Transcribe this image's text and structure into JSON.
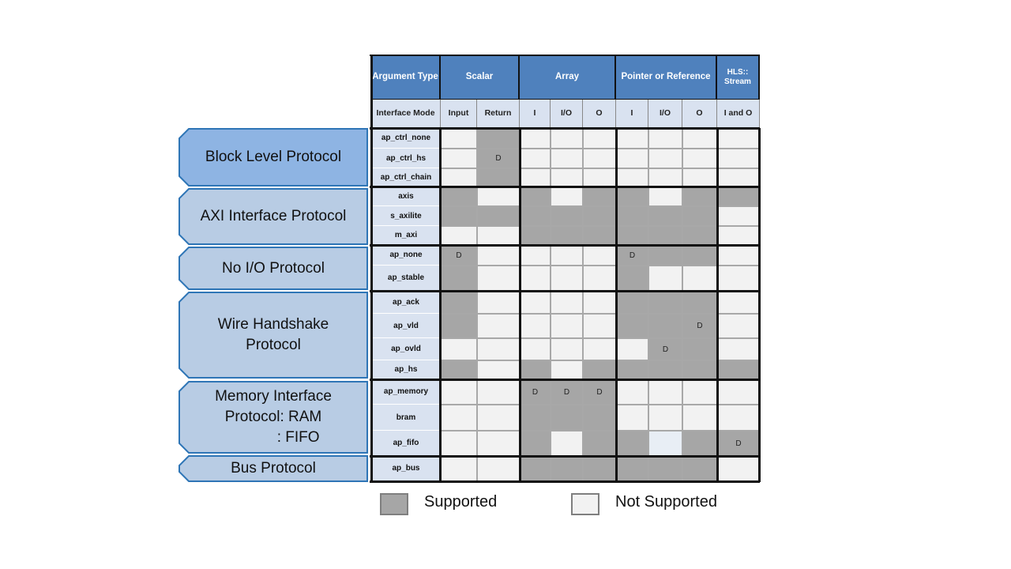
{
  "header": {
    "argument_type": "Argument Type",
    "interface_mode": "Interface Mode",
    "groups": [
      {
        "label": "Scalar",
        "span": 2
      },
      {
        "label": "Array",
        "span": 3
      },
      {
        "label": "Pointer or Reference",
        "span": 3
      },
      {
        "label": "HLS:: Stream",
        "span": 1
      }
    ],
    "subcolumns": [
      "Input",
      "Return",
      "I",
      "I/O",
      "O",
      "I",
      "I/O",
      "O",
      "I and O"
    ]
  },
  "protocol_groups": [
    {
      "label": "Block Level Protocol",
      "rows": 3,
      "highlighted": true
    },
    {
      "label": "AXI Interface Protocol",
      "rows": 3
    },
    {
      "label": "No I/O Protocol",
      "rows": 2
    },
    {
      "label": "Wire Handshake\nProtocol",
      "rows": 4
    },
    {
      "label": "Memory Interface\nProtocol: RAM\n            : FIFO",
      "rows": 3
    },
    {
      "label": "Bus Protocol",
      "rows": 1
    }
  ],
  "rows": [
    {
      "mode": "ap_ctrl_none",
      "cells": [
        "N",
        "S",
        "N",
        "N",
        "N",
        "N",
        "N",
        "N",
        "N"
      ],
      "marks": [
        "",
        "",
        "",
        "",
        "",
        "",
        "",
        "",
        ""
      ]
    },
    {
      "mode": "ap_ctrl_hs",
      "cells": [
        "N",
        "S",
        "N",
        "N",
        "N",
        "N",
        "N",
        "N",
        "N"
      ],
      "marks": [
        "",
        "D",
        "",
        "",
        "",
        "",
        "",
        "",
        ""
      ]
    },
    {
      "mode": "ap_ctrl_chain",
      "cells": [
        "N",
        "S",
        "N",
        "N",
        "N",
        "N",
        "N",
        "N",
        "N"
      ],
      "marks": [
        "",
        "",
        "",
        "",
        "",
        "",
        "",
        "",
        ""
      ]
    },
    {
      "mode": "axis",
      "cells": [
        "S",
        "N",
        "S",
        "N",
        "S",
        "S",
        "N",
        "S",
        "S"
      ],
      "marks": [
        "",
        "",
        "",
        "",
        "",
        "",
        "",
        "",
        ""
      ]
    },
    {
      "mode": "s_axilite",
      "cells": [
        "S",
        "S",
        "S",
        "S",
        "S",
        "S",
        "S",
        "S",
        "N"
      ],
      "marks": [
        "",
        "",
        "",
        "",
        "",
        "",
        "",
        "",
        ""
      ]
    },
    {
      "mode": "m_axi",
      "cells": [
        "N",
        "N",
        "S",
        "S",
        "S",
        "S",
        "S",
        "S",
        "N"
      ],
      "marks": [
        "",
        "",
        "",
        "",
        "",
        "",
        "",
        "",
        ""
      ]
    },
    {
      "mode": "ap_none",
      "cells": [
        "S",
        "N",
        "N",
        "N",
        "N",
        "S",
        "S",
        "S",
        "N"
      ],
      "marks": [
        "D",
        "",
        "",
        "",
        "",
        "D",
        "",
        "",
        ""
      ]
    },
    {
      "mode": "ap_stable",
      "cells": [
        "S",
        "N",
        "N",
        "N",
        "N",
        "S",
        "N",
        "N",
        "N"
      ],
      "marks": [
        "",
        "",
        "",
        "",
        "",
        "",
        "",
        "",
        ""
      ]
    },
    {
      "mode": "ap_ack",
      "cells": [
        "S",
        "N",
        "N",
        "N",
        "N",
        "S",
        "S",
        "S",
        "N"
      ],
      "marks": [
        "",
        "",
        "",
        "",
        "",
        "",
        "",
        "",
        ""
      ]
    },
    {
      "mode": "ap_vld",
      "cells": [
        "S",
        "N",
        "N",
        "N",
        "N",
        "S",
        "S",
        "S",
        "N"
      ],
      "marks": [
        "",
        "",
        "",
        "",
        "",
        "",
        "",
        "D",
        ""
      ]
    },
    {
      "mode": "ap_ovld",
      "cells": [
        "N",
        "N",
        "N",
        "N",
        "N",
        "N",
        "S",
        "S",
        "N"
      ],
      "marks": [
        "",
        "",
        "",
        "",
        "",
        "",
        "D",
        "",
        ""
      ]
    },
    {
      "mode": "ap_hs",
      "cells": [
        "S",
        "N",
        "S",
        "N",
        "S",
        "S",
        "S",
        "S",
        "S"
      ],
      "marks": [
        "",
        "",
        "",
        "",
        "",
        "",
        "",
        "",
        ""
      ]
    },
    {
      "mode": "ap_memory",
      "cells": [
        "N",
        "N",
        "S",
        "S",
        "S",
        "N",
        "N",
        "N",
        "N"
      ],
      "marks": [
        "",
        "",
        "D",
        "D",
        "D",
        "",
        "",
        "",
        ""
      ]
    },
    {
      "mode": "bram",
      "cells": [
        "N",
        "N",
        "S",
        "S",
        "S",
        "N",
        "N",
        "N",
        "N"
      ],
      "marks": [
        "",
        "",
        "",
        "",
        "",
        "",
        "",
        "",
        ""
      ]
    },
    {
      "mode": "ap_fifo",
      "cells": [
        "N",
        "N",
        "S",
        "N",
        "S",
        "S",
        "L",
        "S",
        "S"
      ],
      "marks": [
        "",
        "",
        "",
        "",
        "",
        "",
        "",
        "",
        "D"
      ]
    },
    {
      "mode": "ap_bus",
      "cells": [
        "N",
        "N",
        "S",
        "S",
        "S",
        "S",
        "S",
        "S",
        "N"
      ],
      "marks": [
        "",
        "",
        "",
        "",
        "",
        "",
        "",
        "",
        ""
      ]
    }
  ],
  "legend": {
    "supported": "Supported",
    "not_supported": "Not Supported"
  },
  "colors": {
    "header_blue": "#4f81bd",
    "subheader": "#d9e2f0",
    "supported": "#a6a6a6",
    "not_supported": "#f2f2f2",
    "group_label_fill": "#b8cce4",
    "group_label_highlight": "#8eb4e3"
  }
}
